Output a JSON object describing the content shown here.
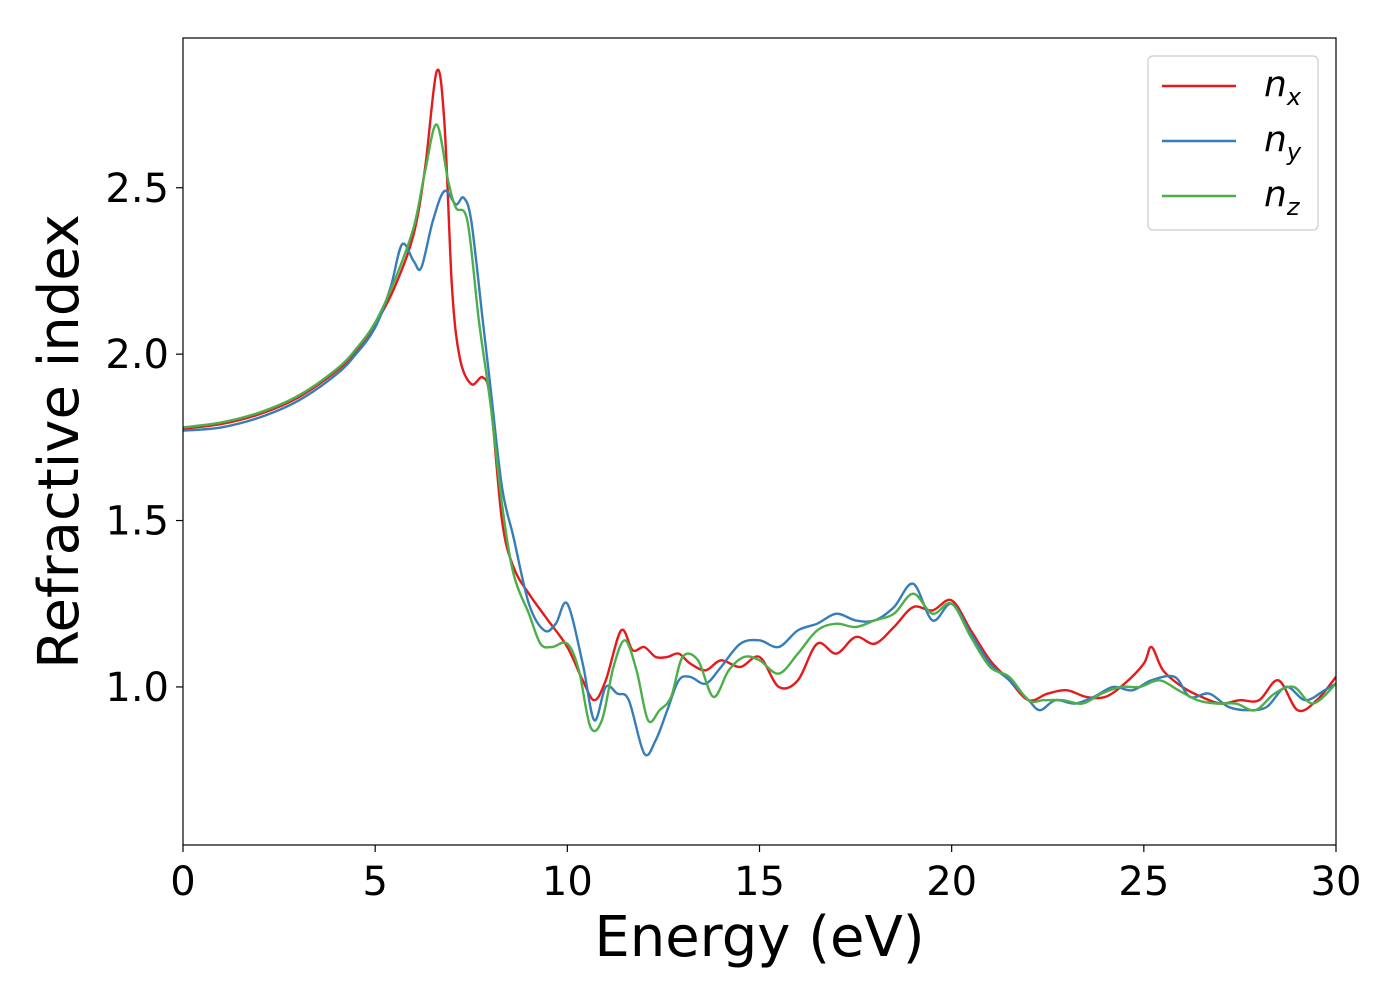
{
  "chart_data": {
    "type": "line",
    "xlabel": "Energy (eV)",
    "ylabel": "Refractive index",
    "xlim": [
      0,
      30
    ],
    "ylim": [
      0.525,
      2.95
    ],
    "xticks": [
      0,
      5,
      10,
      15,
      20,
      25,
      30
    ],
    "xtick_labels": [
      "0",
      "5",
      "10",
      "15",
      "20",
      "25",
      "30"
    ],
    "yticks": [
      1.0,
      1.5,
      2.0,
      2.5
    ],
    "ytick_labels": [
      "1.0",
      "1.5",
      "2.0",
      "2.5"
    ],
    "grid": false,
    "legend_position": "top-right",
    "series": [
      {
        "name": "n",
        "subscript": "x",
        "color": "#e41a1c",
        "x": [
          0,
          1,
          2,
          3,
          4,
          4.5,
          5,
          5.5,
          6,
          6.3,
          6.6,
          6.8,
          7.0,
          7.2,
          7.5,
          7.8,
          8.0,
          8.3,
          8.6,
          9.0,
          9.5,
          10.0,
          10.4,
          10.7,
          11.0,
          11.4,
          11.7,
          12.0,
          12.3,
          12.6,
          12.9,
          13.2,
          13.6,
          14.0,
          14.5,
          15.0,
          15.5,
          16.0,
          16.5,
          17.0,
          17.5,
          18.0,
          18.5,
          19.0,
          19.5,
          20.0,
          20.5,
          21.0,
          21.5,
          22.0,
          22.5,
          23.0,
          23.5,
          24.0,
          24.5,
          25.0,
          25.2,
          25.5,
          26.0,
          26.5,
          27.0,
          27.5,
          28.0,
          28.5,
          29.0,
          29.5,
          30.0
        ],
        "y": [
          1.776,
          1.79,
          1.82,
          1.87,
          1.95,
          2.01,
          2.09,
          2.2,
          2.36,
          2.56,
          2.85,
          2.7,
          2.2,
          1.99,
          1.91,
          1.93,
          1.86,
          1.5,
          1.36,
          1.28,
          1.2,
          1.12,
          1.02,
          0.96,
          1.02,
          1.17,
          1.11,
          1.12,
          1.09,
          1.09,
          1.1,
          1.07,
          1.05,
          1.08,
          1.06,
          1.09,
          1.0,
          1.02,
          1.13,
          1.1,
          1.15,
          1.13,
          1.18,
          1.24,
          1.23,
          1.26,
          1.17,
          1.08,
          1.02,
          0.96,
          0.98,
          0.99,
          0.97,
          0.97,
          1.01,
          1.07,
          1.12,
          1.05,
          1.0,
          0.97,
          0.95,
          0.96,
          0.96,
          1.02,
          0.93,
          0.96,
          1.03
        ]
      },
      {
        "name": "n",
        "subscript": "y",
        "color": "#377eb8",
        "x": [
          0,
          1,
          2,
          3,
          4,
          4.5,
          5,
          5.4,
          5.7,
          6.0,
          6.2,
          6.5,
          6.8,
          7.1,
          7.3,
          7.5,
          7.8,
          8.0,
          8.3,
          8.6,
          9.0,
          9.4,
          9.7,
          10.0,
          10.4,
          10.7,
          11.0,
          11.3,
          11.6,
          12.0,
          12.3,
          12.6,
          12.9,
          13.2,
          13.6,
          14.0,
          14.5,
          15.0,
          15.5,
          16.0,
          16.5,
          17.0,
          17.5,
          18.0,
          18.5,
          19.0,
          19.5,
          20.0,
          20.5,
          21.0,
          21.5,
          22.0,
          22.3,
          22.7,
          23.2,
          23.7,
          24.2,
          24.7,
          25.2,
          25.8,
          26.2,
          26.7,
          27.2,
          27.7,
          28.2,
          28.7,
          29.2,
          29.7,
          30.0
        ],
        "y": [
          1.77,
          1.78,
          1.81,
          1.86,
          1.94,
          2.0,
          2.08,
          2.2,
          2.33,
          2.28,
          2.26,
          2.4,
          2.49,
          2.45,
          2.47,
          2.4,
          2.1,
          1.9,
          1.6,
          1.45,
          1.25,
          1.17,
          1.19,
          1.25,
          1.07,
          0.9,
          1.0,
          0.98,
          0.96,
          0.8,
          0.84,
          0.93,
          1.02,
          1.03,
          1.01,
          1.06,
          1.13,
          1.14,
          1.12,
          1.17,
          1.19,
          1.22,
          1.2,
          1.2,
          1.24,
          1.31,
          1.2,
          1.25,
          1.16,
          1.07,
          1.02,
          0.96,
          0.93,
          0.96,
          0.95,
          0.97,
          1.0,
          0.99,
          1.02,
          1.03,
          0.97,
          0.98,
          0.94,
          0.93,
          0.94,
          1.0,
          0.96,
          0.99,
          1.01
        ]
      },
      {
        "name": "n",
        "subscript": "z",
        "color": "#4daf4a",
        "x": [
          0,
          1,
          2,
          3,
          4,
          4.5,
          5,
          5.5,
          6,
          6.3,
          6.6,
          6.9,
          7.1,
          7.4,
          7.7,
          8.0,
          8.3,
          8.6,
          9.0,
          9.3,
          9.6,
          10.0,
          10.3,
          10.6,
          10.9,
          11.2,
          11.5,
          11.8,
          12.1,
          12.4,
          12.7,
          13.0,
          13.4,
          13.8,
          14.2,
          14.6,
          15.0,
          15.5,
          16.0,
          16.5,
          17.0,
          17.5,
          18.0,
          18.5,
          19.0,
          19.5,
          20.0,
          20.5,
          21.0,
          21.5,
          22.0,
          22.4,
          22.9,
          23.4,
          23.9,
          24.4,
          24.9,
          25.4,
          25.9,
          26.4,
          26.9,
          27.4,
          27.9,
          28.4,
          28.9,
          29.4,
          30.0
        ],
        "y": [
          1.78,
          1.795,
          1.825,
          1.875,
          1.955,
          2.015,
          2.095,
          2.22,
          2.38,
          2.55,
          2.69,
          2.52,
          2.44,
          2.4,
          2.1,
          1.85,
          1.55,
          1.34,
          1.22,
          1.13,
          1.12,
          1.13,
          1.05,
          0.88,
          0.9,
          1.06,
          1.14,
          1.05,
          0.9,
          0.93,
          0.97,
          1.09,
          1.08,
          0.97,
          1.05,
          1.09,
          1.08,
          1.04,
          1.1,
          1.17,
          1.19,
          1.18,
          1.2,
          1.22,
          1.28,
          1.22,
          1.25,
          1.15,
          1.06,
          1.03,
          0.96,
          0.96,
          0.96,
          0.95,
          0.98,
          1.0,
          1.0,
          1.02,
          0.99,
          0.96,
          0.95,
          0.95,
          0.93,
          0.98,
          1.0,
          0.95,
          1.01
        ]
      }
    ]
  }
}
